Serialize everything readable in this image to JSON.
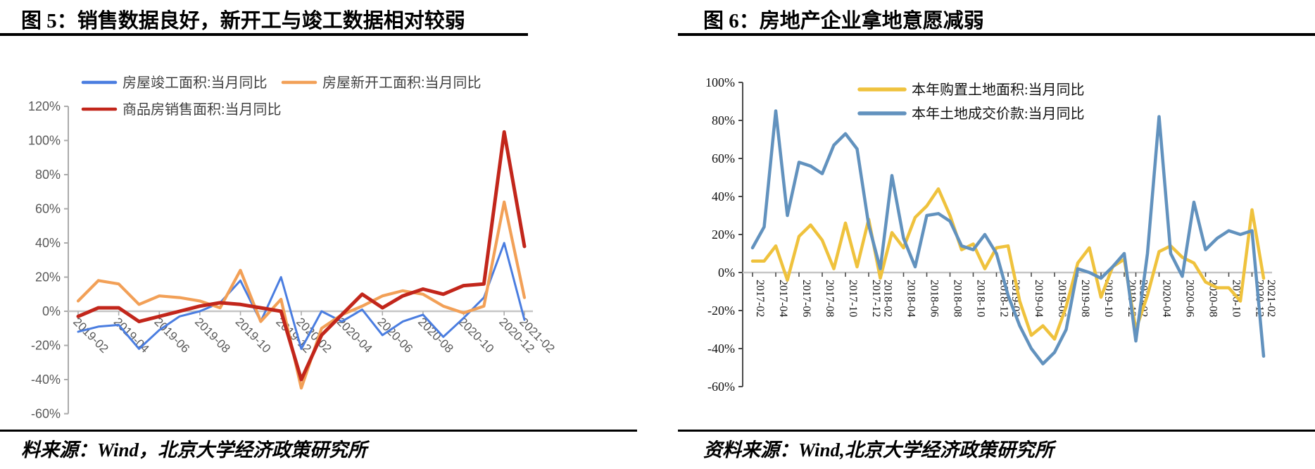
{
  "figure5": {
    "title": "图 5：销售数据良好，新开工与竣工数据相对较弱",
    "source": "料来源：Wind，北京大学经济政策研究所"
  },
  "figure6": {
    "title": "图 6：房地产企业拿地意愿减弱",
    "source": "资料来源：Wind,北京大学经济政策研究所"
  },
  "chart_data": [
    {
      "type": "line",
      "title": "",
      "categories": [
        "2019-02",
        "2019-03",
        "2019-04",
        "2019-05",
        "2019-06",
        "2019-07",
        "2019-08",
        "2019-09",
        "2019-10",
        "2019-11",
        "2019-12",
        "2020-02",
        "2020-03",
        "2020-04",
        "2020-05",
        "2020-06",
        "2020-07",
        "2020-08",
        "2020-09",
        "2020-10",
        "2020-11",
        "2020-12",
        "2021-02"
      ],
      "series": [
        {
          "name": "房屋竣工面积:当月同比",
          "color": "#4a7de0",
          "line_width": 3,
          "values": [
            -12,
            -9,
            -8,
            -22,
            -11,
            -3,
            0,
            5,
            18,
            -6,
            20,
            -22,
            0,
            -6,
            1,
            -14,
            -6,
            -2,
            -15,
            -4,
            8,
            40,
            -5
          ]
        },
        {
          "name": "房屋新开工面积:当月同比",
          "color": "#f2a057",
          "line_width": 4.2,
          "values": [
            6,
            18,
            16,
            4,
            9,
            8,
            6,
            2,
            24,
            -6,
            7,
            -45,
            -10,
            -2,
            3,
            9,
            12,
            10,
            3,
            -1,
            3,
            64,
            8
          ]
        },
        {
          "name": "商品房销售面积:当月同比",
          "color": "#c2261b",
          "line_width": 5,
          "values": [
            -3,
            2,
            2,
            -6,
            -3,
            0,
            3,
            5,
            4,
            2,
            0,
            -40,
            -14,
            -2,
            10,
            2,
            9,
            13,
            10,
            15,
            16,
            105,
            38
          ]
        }
      ],
      "ylim": [
        -60,
        120
      ],
      "yticks": [
        120,
        100,
        80,
        60,
        40,
        20,
        0,
        -20,
        -40,
        -60
      ],
      "x_tick_interval_months": 2,
      "x_label_rotation": 45,
      "grid": "zero-line-only",
      "legend_position": "top"
    },
    {
      "type": "line",
      "title": "",
      "categories": [
        "2017-02",
        "2017-03",
        "2017-04",
        "2017-05",
        "2017-06",
        "2017-07",
        "2017-08",
        "2017-09",
        "2017-10",
        "2017-11",
        "2017-12",
        "2018-02",
        "2018-03",
        "2018-04",
        "2018-05",
        "2018-06",
        "2018-07",
        "2018-08",
        "2018-09",
        "2018-10",
        "2018-11",
        "2018-12",
        "2019-02",
        "2019-03",
        "2019-04",
        "2019-05",
        "2019-06",
        "2019-07",
        "2019-08",
        "2019-09",
        "2019-10",
        "2019-11",
        "2019-12",
        "2020-02",
        "2020-03",
        "2020-04",
        "2020-05",
        "2020-06",
        "2020-07",
        "2020-08",
        "2020-09",
        "2020-10",
        "2020-11",
        "2020-12",
        "2021-02"
      ],
      "series": [
        {
          "name": "本年购置土地面积:当月同比",
          "color": "#efc23d",
          "line_width": 4.5,
          "values": [
            6,
            6,
            14,
            -4,
            19,
            25,
            17,
            2,
            26,
            3,
            28,
            -3,
            21,
            13,
            29,
            35,
            44,
            30,
            12,
            15,
            2,
            13,
            14,
            -15,
            -33,
            -28,
            -35,
            -18,
            5,
            13,
            -13,
            3,
            7,
            -30,
            -12,
            11,
            14,
            8,
            5,
            -5,
            -8,
            -8,
            -15,
            33,
            -3
          ]
        },
        {
          "name": "本年土地成交价款:当月同比",
          "color": "#6292be",
          "line_width": 4.5,
          "values": [
            13,
            24,
            85,
            30,
            58,
            56,
            52,
            67,
            73,
            65,
            25,
            2,
            51,
            18,
            3,
            30,
            31,
            27,
            14,
            12,
            20,
            10,
            -12,
            -28,
            -40,
            -48,
            -42,
            -30,
            2,
            0,
            -3,
            3,
            10,
            -36,
            10,
            82,
            10,
            -2,
            37,
            12,
            18,
            22,
            20,
            22,
            -44
          ]
        }
      ],
      "ylim": [
        -60,
        100
      ],
      "yticks": [
        100,
        80,
        60,
        40,
        20,
        0,
        -20,
        -40,
        -60
      ],
      "x_tick_interval_months": 2,
      "x_label_rotation": 90,
      "grid": "zero-line-only",
      "legend_position": "top"
    }
  ]
}
